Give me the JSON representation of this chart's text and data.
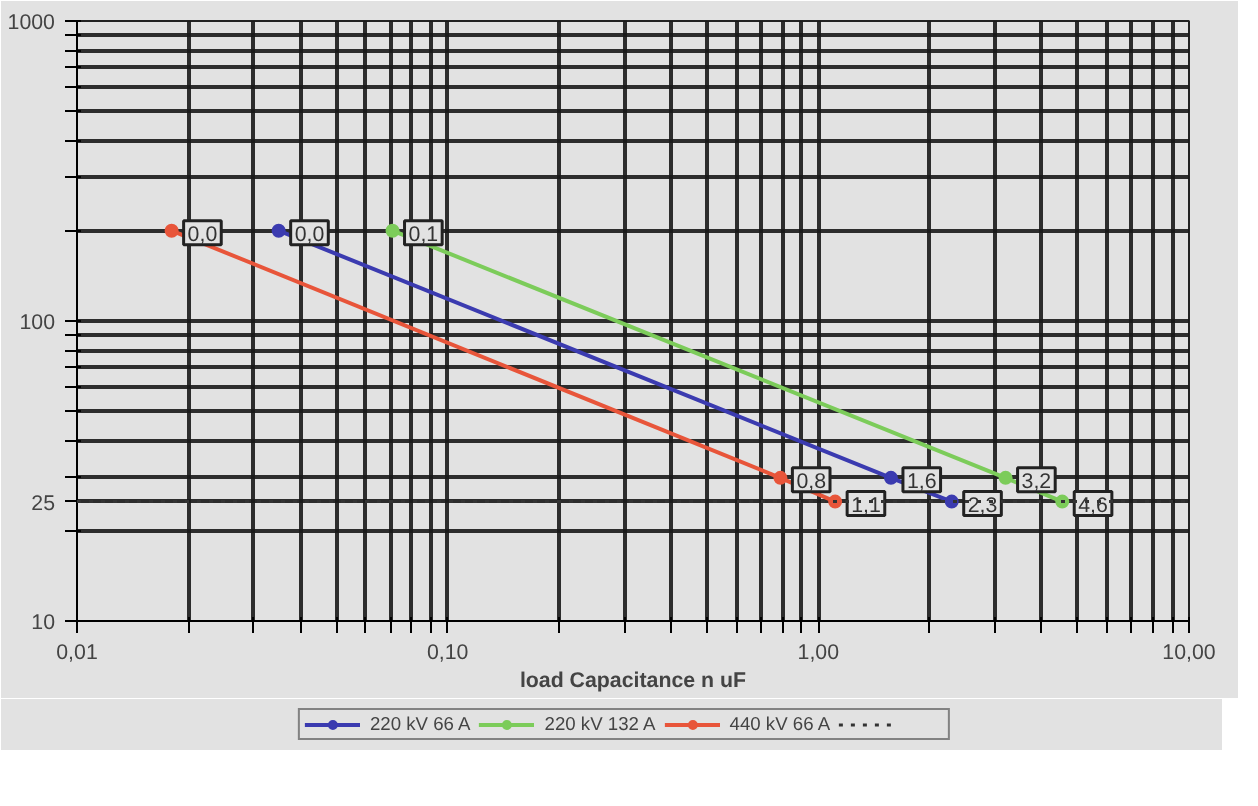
{
  "chart_data": {
    "type": "line",
    "xlabel": "load Capacitance n uF",
    "log": "xy",
    "xlim": [
      0.01,
      10
    ],
    "ylim": [
      10,
      1000
    ],
    "xticks": [
      {
        "value": 0.01,
        "label": "0,01"
      },
      {
        "value": 0.02,
        "label": null
      },
      {
        "value": 0.03,
        "label": null
      },
      {
        "value": 0.04,
        "label": null
      },
      {
        "value": 0.05,
        "label": null
      },
      {
        "value": 0.06,
        "label": null
      },
      {
        "value": 0.07,
        "label": null
      },
      {
        "value": 0.08,
        "label": null
      },
      {
        "value": 0.09,
        "label": null
      },
      {
        "value": 0.1,
        "label": "0,10"
      },
      {
        "value": 0.2,
        "label": null
      },
      {
        "value": 0.3,
        "label": null
      },
      {
        "value": 0.4,
        "label": null
      },
      {
        "value": 0.5,
        "label": null
      },
      {
        "value": 0.6,
        "label": null
      },
      {
        "value": 0.7,
        "label": null
      },
      {
        "value": 0.8,
        "label": null
      },
      {
        "value": 0.9,
        "label": null
      },
      {
        "value": 1,
        "label": "1,00"
      },
      {
        "value": 2,
        "label": null
      },
      {
        "value": 3,
        "label": null
      },
      {
        "value": 4,
        "label": null
      },
      {
        "value": 5,
        "label": null
      },
      {
        "value": 6,
        "label": null
      },
      {
        "value": 7,
        "label": null
      },
      {
        "value": 8,
        "label": null
      },
      {
        "value": 9,
        "label": null
      },
      {
        "value": 10,
        "label": "10,00"
      }
    ],
    "yticks": [
      10,
      {
        "value": 20,
        "label": null
      },
      25,
      {
        "value": 30,
        "label": null
      },
      {
        "value": 40,
        "label": null
      },
      {
        "value": 50,
        "label": null
      },
      {
        "value": 60,
        "label": null
      },
      {
        "value": 70,
        "label": null
      },
      {
        "value": 80,
        "label": null
      },
      {
        "value": 90,
        "label": null
      },
      100,
      {
        "value": 200,
        "label": null
      },
      {
        "value": 300,
        "label": null
      },
      {
        "value": 400,
        "label": null
      },
      {
        "value": 500,
        "label": null
      },
      {
        "value": 600,
        "label": null
      },
      {
        "value": 700,
        "label": null
      },
      {
        "value": 800,
        "label": null
      },
      {
        "value": 900,
        "label": null
      },
      1000
    ],
    "grid": true,
    "legend": "bottom",
    "marker": "circle",
    "line_style": "solid",
    "series": [
      {
        "name": "220 kV 66 A",
        "color": "#3b3bb0",
        "x": [
          0.035,
          1.57,
          2.29
        ],
        "values": [
          200,
          30,
          25
        ]
      },
      {
        "name": "220 kV 132 A",
        "color": "#7ccc5a",
        "x": [
          0.071,
          3.2,
          4.55
        ],
        "values": [
          200,
          30,
          25
        ]
      },
      {
        "name": "440 kV 66 A",
        "color": "#e8553a",
        "x": [
          0.018,
          0.79,
          1.11
        ],
        "values": [
          200,
          30,
          25
        ]
      }
    ],
    "annotations": [
      {
        "text": "0,0",
        "x": 0.035,
        "y": 200
      },
      {
        "text": "1,6",
        "x": 1.57,
        "y": 30
      },
      {
        "text": "2,3",
        "x": 2.29,
        "y": 25
      },
      {
        "text": "0,1",
        "x": 0.071,
        "y": 200
      },
      {
        "text": "3,2",
        "x": 3.2,
        "y": 30
      },
      {
        "text": "4,6",
        "x": 4.55,
        "y": 25
      },
      {
        "text": "0,0",
        "x": 0.018,
        "y": 200
      },
      {
        "text": "0,8",
        "x": 0.79,
        "y": 30
      },
      {
        "text": "1,1",
        "x": 1.11,
        "y": 25
      }
    ],
    "ref_lines": [
      {
        "axis": "y",
        "value": 25,
        "label": null,
        "line_style": "dotted",
        "color": "#333333"
      }
    ]
  }
}
